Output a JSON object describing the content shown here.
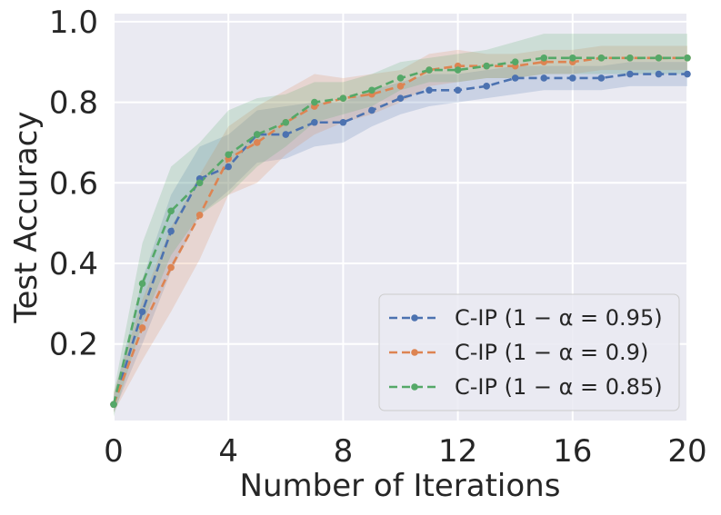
{
  "chart_data": {
    "type": "line",
    "title": "",
    "xlabel": "Number of Iterations",
    "ylabel": "Test Accuracy",
    "xlim": [
      0,
      20
    ],
    "ylim": [
      0.01,
      1.02
    ],
    "xticks": [
      0,
      4,
      8,
      12,
      16,
      20
    ],
    "xtick_labels": [
      "0",
      "4",
      "8",
      "12",
      "16",
      "20"
    ],
    "yticks": [
      0.2,
      0.4,
      0.6,
      0.8,
      1.0
    ],
    "ytick_labels": [
      "0.2",
      "0.4",
      "0.6",
      "0.8",
      "1.0"
    ],
    "grid": true,
    "legend_position": "bottom-right",
    "x": [
      0,
      1,
      2,
      3,
      4,
      5,
      6,
      7,
      8,
      9,
      10,
      11,
      12,
      13,
      14,
      15,
      16,
      17,
      18,
      19,
      20
    ],
    "series": [
      {
        "name": "C-IP (1 − α = 0.95)",
        "color": "#4c72b0",
        "values": [
          0.05,
          0.28,
          0.48,
          0.61,
          0.64,
          0.72,
          0.72,
          0.75,
          0.75,
          0.78,
          0.81,
          0.83,
          0.83,
          0.84,
          0.86,
          0.86,
          0.86,
          0.86,
          0.87,
          0.87,
          0.87
        ],
        "band_lower": [
          0.03,
          0.2,
          0.38,
          0.52,
          0.58,
          0.65,
          0.66,
          0.69,
          0.7,
          0.74,
          0.77,
          0.79,
          0.8,
          0.81,
          0.82,
          0.83,
          0.83,
          0.83,
          0.84,
          0.84,
          0.84
        ],
        "band_upper": [
          0.07,
          0.36,
          0.57,
          0.69,
          0.72,
          0.78,
          0.79,
          0.8,
          0.8,
          0.83,
          0.85,
          0.87,
          0.87,
          0.88,
          0.89,
          0.89,
          0.89,
          0.89,
          0.9,
          0.9,
          0.9
        ]
      },
      {
        "name": "C-IP (1 − α = 0.9)",
        "color": "#dd8452",
        "values": [
          0.05,
          0.24,
          0.39,
          0.52,
          0.66,
          0.7,
          0.75,
          0.79,
          0.81,
          0.82,
          0.84,
          0.88,
          0.89,
          0.89,
          0.89,
          0.9,
          0.9,
          0.91,
          0.91,
          0.91,
          0.91
        ],
        "band_lower": [
          0.03,
          0.16,
          0.28,
          0.41,
          0.57,
          0.6,
          0.67,
          0.72,
          0.75,
          0.77,
          0.8,
          0.84,
          0.85,
          0.86,
          0.86,
          0.87,
          0.87,
          0.88,
          0.88,
          0.88,
          0.88
        ],
        "band_upper": [
          0.08,
          0.31,
          0.49,
          0.62,
          0.74,
          0.79,
          0.83,
          0.87,
          0.86,
          0.87,
          0.88,
          0.92,
          0.93,
          0.92,
          0.92,
          0.93,
          0.93,
          0.94,
          0.94,
          0.94,
          0.94
        ]
      },
      {
        "name": "C-IP (1 − α = 0.85)",
        "color": "#55a868",
        "values": [
          0.05,
          0.35,
          0.53,
          0.6,
          0.67,
          0.72,
          0.75,
          0.8,
          0.81,
          0.83,
          0.86,
          0.88,
          0.88,
          0.89,
          0.9,
          0.91,
          0.91,
          0.91,
          0.91,
          0.91,
          0.91
        ],
        "band_lower": [
          0.02,
          0.25,
          0.42,
          0.52,
          0.57,
          0.64,
          0.69,
          0.75,
          0.77,
          0.79,
          0.83,
          0.85,
          0.85,
          0.86,
          0.86,
          0.87,
          0.87,
          0.87,
          0.87,
          0.87,
          0.87
        ],
        "band_upper": [
          0.08,
          0.45,
          0.64,
          0.7,
          0.78,
          0.81,
          0.82,
          0.85,
          0.85,
          0.87,
          0.9,
          0.91,
          0.92,
          0.93,
          0.95,
          0.97,
          0.97,
          0.97,
          0.97,
          0.97,
          0.97
        ]
      }
    ]
  }
}
